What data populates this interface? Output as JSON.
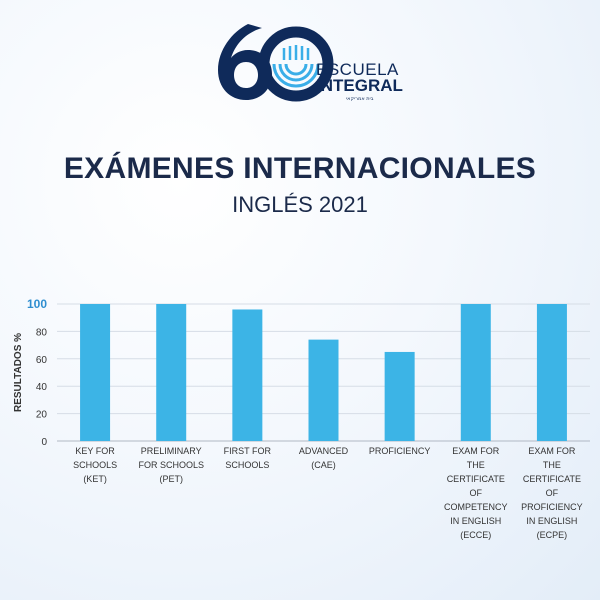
{
  "logo": {
    "number": "60",
    "line1": "ESCUELA",
    "line2": "INTEGRAL",
    "tagline": "בית אמריקאי",
    "colors": {
      "navy": "#0f2a5a",
      "accent": "#3aaee8"
    }
  },
  "header": {
    "title": "EXÁMENES INTERNACIONALES",
    "subtitle": "INGLÉS 2021"
  },
  "chart_data": {
    "type": "bar",
    "ylabel": "RESULTADOS %",
    "xlabel": "",
    "ylim": [
      0,
      100
    ],
    "yticks": [
      0,
      20,
      40,
      60,
      80,
      100
    ],
    "grid": true,
    "bar_color": "#3cb4e6",
    "categories": [
      "KEY FOR SCHOOLS (KET)",
      "PRELIMINARY FOR SCHOOLS (PET)",
      "FIRST FOR SCHOOLS",
      "ADVANCED (CAE)",
      "PROFICIENCY",
      "EXAM FOR THE CERTIFICATE OF COMPETENCY IN ENGLISH (ECCE)",
      "EXAM FOR THE CERTIFICATE OF PROFICIENCY IN ENGLISH (ECPE)"
    ],
    "category_lines": [
      [
        "KEY FOR",
        "SCHOOLS",
        "(KET)"
      ],
      [
        "PRELIMINARY",
        "FOR SCHOOLS",
        "(PET)"
      ],
      [
        "FIRST FOR",
        "SCHOOLS"
      ],
      [
        "ADVANCED",
        "(CAE)"
      ],
      [
        "PROFICIENCY"
      ],
      [
        "EXAM FOR",
        "THE",
        "CERTIFICATE",
        "OF",
        "COMPETENCY",
        "IN ENGLISH",
        "(ECCE)"
      ],
      [
        "EXAM FOR",
        "THE",
        "CERTIFICATE",
        "OF",
        "PROFICIENCY",
        "IN ENGLISH",
        "(ECPE)"
      ]
    ],
    "values": [
      100,
      100,
      96,
      74,
      65,
      100,
      100
    ]
  }
}
